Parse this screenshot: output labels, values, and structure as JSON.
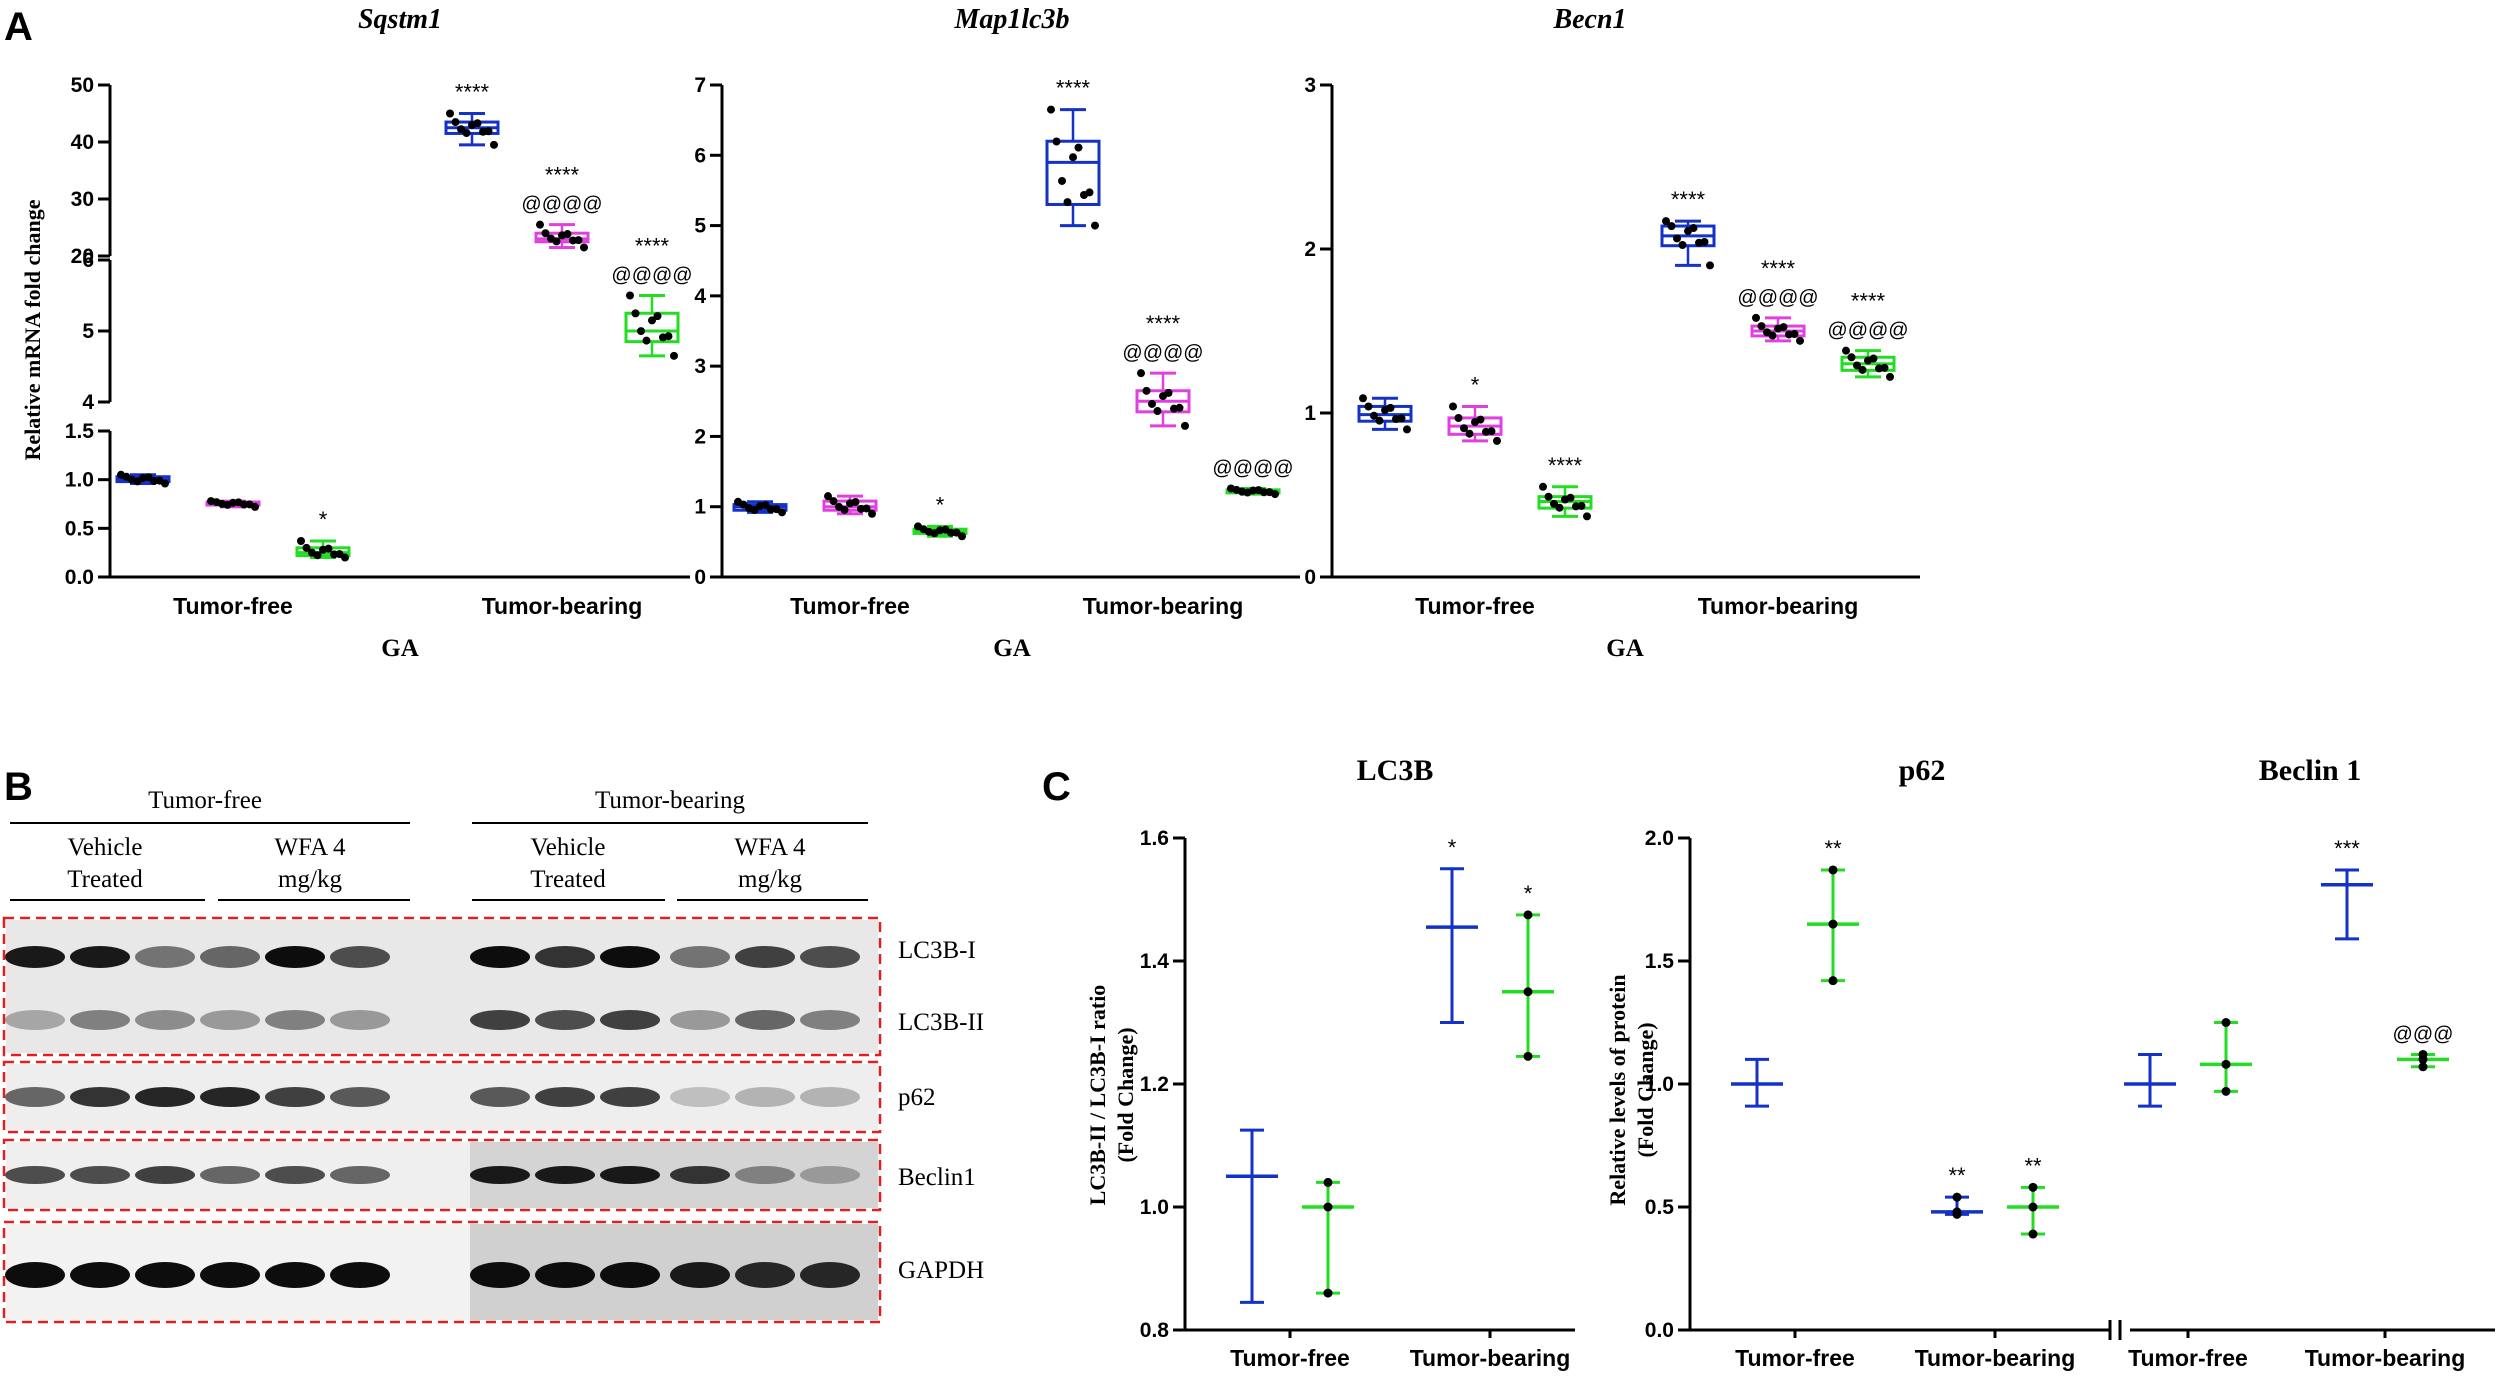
{
  "panel_letters": {
    "a": "A",
    "b": "B",
    "c": "C"
  },
  "colors": {
    "blue": "#1432c8",
    "magenta": "#e040e0",
    "green": "#22dd22",
    "red_dash": "#e02020"
  },
  "chart_data": [
    {
      "panel": "A",
      "type": "box",
      "title": "Sqstm1",
      "ylabel": "Relative mRNA fold change",
      "xlabel": "GA",
      "categories": [
        "Tumor-free",
        "Tumor-bearing"
      ],
      "y_axis_segments": [
        {
          "range": [
            0,
            1.5
          ],
          "ticks": [
            "0.0",
            "0.5",
            "1.0",
            "1.5"
          ]
        },
        {
          "range": [
            4,
            6
          ],
          "ticks": [
            "4",
            "5",
            "6"
          ]
        },
        {
          "range": [
            20,
            50
          ],
          "ticks": [
            "20",
            "30",
            "40",
            "50"
          ]
        }
      ],
      "series": [
        {
          "color": "blue",
          "boxes": [
            {
              "category": "Tumor-free",
              "min": 0.96,
              "q1": 0.98,
              "median": 1.0,
              "q3": 1.03,
              "max": 1.05,
              "label": ""
            },
            {
              "category": "Tumor-bearing",
              "min": 39.5,
              "q1": 41.5,
              "median": 42.5,
              "q3": 43.5,
              "max": 45,
              "label": "****"
            }
          ]
        },
        {
          "color": "magenta",
          "boxes": [
            {
              "category": "Tumor-free",
              "min": 0.72,
              "q1": 0.74,
              "median": 0.75,
              "q3": 0.77,
              "max": 0.78,
              "label": ""
            },
            {
              "category": "Tumor-bearing",
              "min": 21.5,
              "q1": 22.5,
              "median": 23,
              "q3": 24,
              "max": 25.5,
              "label": "****",
              "label2": "@@@@"
            }
          ]
        },
        {
          "color": "green",
          "boxes": [
            {
              "category": "Tumor-free",
              "min": 0.2,
              "q1": 0.22,
              "median": 0.25,
              "q3": 0.3,
              "max": 0.37,
              "label": "*"
            },
            {
              "category": "Tumor-bearing",
              "min": 4.65,
              "q1": 4.85,
              "median": 5.0,
              "q3": 5.25,
              "max": 5.5,
              "label": "****",
              "label2": "@@@@"
            }
          ]
        }
      ]
    },
    {
      "panel": "A",
      "type": "box",
      "title": "Map1lc3b",
      "xlabel": "GA",
      "categories": [
        "Tumor-free",
        "Tumor-bearing"
      ],
      "ylim": [
        0,
        7
      ],
      "yticks": [
        "0",
        "1",
        "2",
        "3",
        "4",
        "5",
        "6",
        "7"
      ],
      "series": [
        {
          "color": "blue",
          "boxes": [
            {
              "category": "Tumor-free",
              "min": 0.92,
              "q1": 0.95,
              "median": 1.0,
              "q3": 1.03,
              "max": 1.07,
              "label": ""
            },
            {
              "category": "Tumor-bearing",
              "min": 5.0,
              "q1": 5.3,
              "median": 5.9,
              "q3": 6.2,
              "max": 6.65,
              "label": "****"
            }
          ]
        },
        {
          "color": "magenta",
          "boxes": [
            {
              "category": "Tumor-free",
              "min": 0.9,
              "q1": 0.95,
              "median": 1.0,
              "q3": 1.08,
              "max": 1.15,
              "label": ""
            },
            {
              "category": "Tumor-bearing",
              "min": 2.15,
              "q1": 2.35,
              "median": 2.5,
              "q3": 2.65,
              "max": 2.9,
              "label": "****",
              "label2": "@@@@"
            }
          ]
        },
        {
          "color": "green",
          "boxes": [
            {
              "category": "Tumor-free",
              "min": 0.58,
              "q1": 0.62,
              "median": 0.65,
              "q3": 0.68,
              "max": 0.72,
              "label": "*"
            },
            {
              "category": "Tumor-bearing",
              "min": 1.18,
              "q1": 1.2,
              "median": 1.22,
              "q3": 1.24,
              "max": 1.26,
              "label": "@@@@"
            }
          ]
        }
      ]
    },
    {
      "panel": "A",
      "type": "box",
      "title": "Becn1",
      "xlabel": "GA",
      "categories": [
        "Tumor-free",
        "Tumor-bearing"
      ],
      "ylim": [
        0,
        3
      ],
      "yticks": [
        "0",
        "1",
        "2",
        "3"
      ],
      "series": [
        {
          "color": "blue",
          "boxes": [
            {
              "category": "Tumor-free",
              "min": 0.9,
              "q1": 0.95,
              "median": 0.99,
              "q3": 1.04,
              "max": 1.09,
              "label": ""
            },
            {
              "category": "Tumor-bearing",
              "min": 1.9,
              "q1": 2.02,
              "median": 2.08,
              "q3": 2.14,
              "max": 2.17,
              "label": "****"
            }
          ]
        },
        {
          "color": "magenta",
          "boxes": [
            {
              "category": "Tumor-free",
              "min": 0.83,
              "q1": 0.87,
              "median": 0.92,
              "q3": 0.97,
              "max": 1.04,
              "label": "*"
            },
            {
              "category": "Tumor-bearing",
              "min": 1.44,
              "q1": 1.47,
              "median": 1.5,
              "q3": 1.53,
              "max": 1.58,
              "label": "****",
              "label2": "@@@@"
            }
          ]
        },
        {
          "color": "green",
          "boxes": [
            {
              "category": "Tumor-free",
              "min": 0.37,
              "q1": 0.42,
              "median": 0.46,
              "q3": 0.49,
              "max": 0.55,
              "label": "****"
            },
            {
              "category": "Tumor-bearing",
              "min": 1.22,
              "q1": 1.26,
              "median": 1.3,
              "q3": 1.34,
              "max": 1.38,
              "label": "****",
              "label2": "@@@@"
            }
          ]
        }
      ]
    },
    {
      "panel": "C",
      "type": "scatter",
      "title": "LC3B",
      "ylabel": "LC3B-II / LC3B-I ratio",
      "ylabel2": "(Fold Change)",
      "categories": [
        "Tumor-free",
        "Tumor-bearing"
      ],
      "ylim": [
        0.8,
        1.6
      ],
      "yticks": [
        "0.8",
        "1.0",
        "1.2",
        "1.4",
        "1.6"
      ],
      "series": [
        {
          "color": "blue",
          "groups": [
            {
              "category": "Tumor-free",
              "mean": 1.05,
              "low": 0.845,
              "high": 1.125,
              "points": [],
              "label": ""
            },
            {
              "category": "Tumor-bearing",
              "mean": 1.455,
              "low": 1.3,
              "high": 1.55,
              "points": [],
              "label": "*"
            }
          ]
        },
        {
          "color": "green",
          "groups": [
            {
              "category": "Tumor-free",
              "mean": 1.0,
              "low": 0.86,
              "high": 1.04,
              "points": [
                0.86,
                1.0,
                1.04
              ],
              "label": ""
            },
            {
              "category": "Tumor-bearing",
              "mean": 1.35,
              "low": 1.245,
              "high": 1.475,
              "points": [
                1.245,
                1.35,
                1.475
              ],
              "label": "*"
            }
          ]
        }
      ]
    },
    {
      "panel": "C",
      "type": "scatter",
      "title": "p62",
      "ylabel": "Relative levels of protein",
      "ylabel2": "(Fold Change)",
      "categories": [
        "Tumor-free",
        "Tumor-bearing"
      ],
      "ylim": [
        0,
        2.0
      ],
      "yticks": [
        "0.0",
        "0.5",
        "1.0",
        "1.5",
        "2.0"
      ],
      "series": [
        {
          "color": "blue",
          "groups": [
            {
              "category": "Tumor-free",
              "mean": 1.0,
              "low": 0.91,
              "high": 1.1,
              "points": [],
              "label": ""
            },
            {
              "category": "Tumor-bearing",
              "mean": 0.48,
              "low": 0.47,
              "high": 0.54,
              "points": [
                0.47,
                0.48,
                0.54
              ],
              "label": "**"
            }
          ]
        },
        {
          "color": "green",
          "groups": [
            {
              "category": "Tumor-free",
              "mean": 1.65,
              "low": 1.42,
              "high": 1.87,
              "points": [
                1.42,
                1.65,
                1.87
              ],
              "label": "**"
            },
            {
              "category": "Tumor-bearing",
              "mean": 0.5,
              "low": 0.39,
              "high": 0.58,
              "points": [
                0.39,
                0.5,
                0.58
              ],
              "label": "**"
            }
          ]
        }
      ]
    },
    {
      "panel": "C",
      "type": "scatter",
      "title": "Beclin 1",
      "categories": [
        "Tumor-free",
        "Tumor-bearing"
      ],
      "ylim": [
        0,
        2.0
      ],
      "series": [
        {
          "color": "blue",
          "groups": [
            {
              "category": "Tumor-free",
              "mean": 1.0,
              "low": 0.91,
              "high": 1.12,
              "points": [],
              "label": ""
            },
            {
              "category": "Tumor-bearing",
              "mean": 1.81,
              "low": 1.59,
              "high": 1.87,
              "points": [],
              "label": "***"
            }
          ]
        },
        {
          "color": "green",
          "groups": [
            {
              "category": "Tumor-free",
              "mean": 1.08,
              "low": 0.97,
              "high": 1.25,
              "points": [
                0.97,
                1.08,
                1.25
              ],
              "label": ""
            },
            {
              "category": "Tumor-bearing",
              "mean": 1.1,
              "low": 1.07,
              "high": 1.12,
              "points": [
                1.07,
                1.1,
                1.12
              ],
              "label": "@@@"
            }
          ]
        }
      ]
    }
  ],
  "blot": {
    "group_headers": [
      "Tumor-free",
      "Tumor-bearing"
    ],
    "treatments": [
      {
        "line1": "Vehicle",
        "line2": "Treated"
      },
      {
        "line1": "WFA 4",
        "line2": "mg/kg"
      },
      {
        "line1": "Vehicle",
        "line2": "Treated"
      },
      {
        "line1": "WFA 4",
        "line2": "mg/kg"
      }
    ],
    "row_labels": [
      "LC3B-I",
      "LC3B-II",
      "p62",
      "Beclin1",
      "GAPDH"
    ],
    "band_intensity": {
      "LC3B-I": [
        0.9,
        0.9,
        0.55,
        0.6,
        0.95,
        0.7,
        0.95,
        0.8,
        0.95,
        0.55,
        0.75,
        0.7
      ],
      "LC3B-II": [
        0.35,
        0.5,
        0.45,
        0.4,
        0.5,
        0.4,
        0.75,
        0.7,
        0.75,
        0.4,
        0.6,
        0.5
      ],
      "p62": [
        0.6,
        0.8,
        0.85,
        0.85,
        0.75,
        0.65,
        0.65,
        0.75,
        0.75,
        0.25,
        0.3,
        0.3
      ],
      "Beclin1": [
        0.7,
        0.7,
        0.75,
        0.6,
        0.7,
        0.6,
        0.9,
        0.9,
        0.9,
        0.8,
        0.5,
        0.4
      ],
      "GAPDH": [
        0.95,
        0.95,
        0.95,
        0.95,
        0.95,
        0.95,
        0.95,
        0.95,
        0.95,
        0.9,
        0.85,
        0.85
      ]
    }
  }
}
